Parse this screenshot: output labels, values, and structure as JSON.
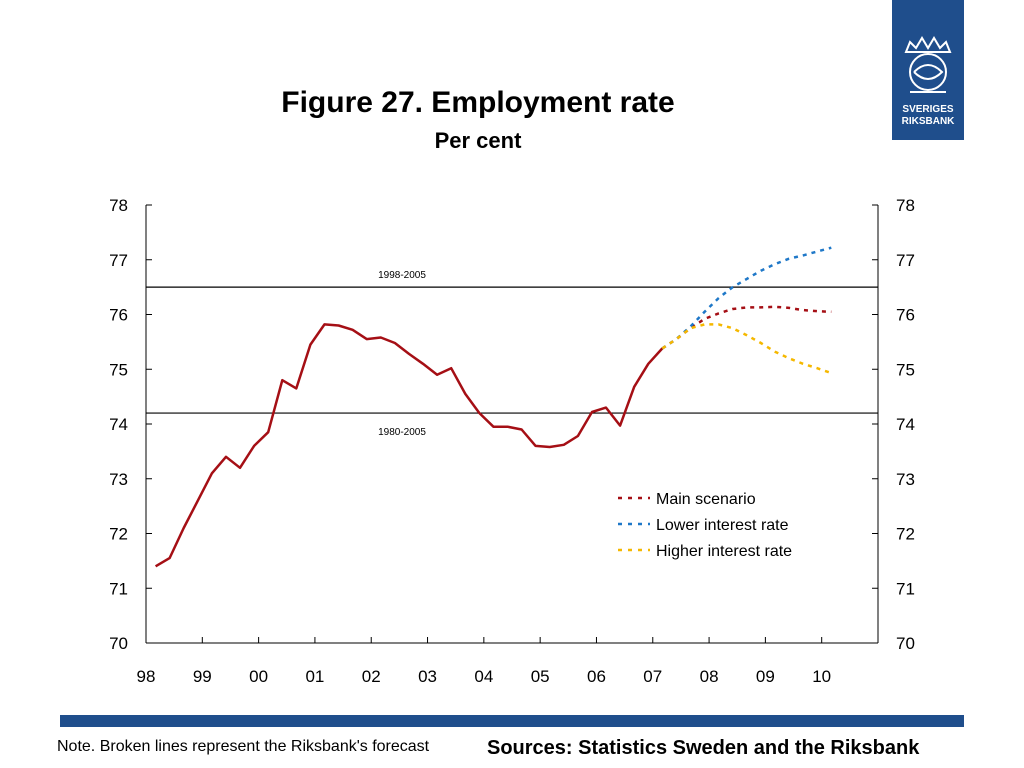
{
  "header": {
    "title": "Figure 27. Employment rate",
    "subtitle": "Per cent"
  },
  "logo": {
    "line1": "SVERIGES",
    "line2": "RIKSBANK",
    "color": "#1f4e8c"
  },
  "footer": {
    "note": "Note. Broken lines represent the Riksbank's forecast",
    "sources": "Sources: Statistics Sweden and the Riksbank",
    "bar_color": "#1f4e8c"
  },
  "chart_data": {
    "type": "line",
    "x_tick_labels": [
      "98",
      "99",
      "00",
      "01",
      "02",
      "03",
      "04",
      "05",
      "06",
      "07",
      "08",
      "09",
      "10"
    ],
    "xlim": [
      1998.0,
      2011.0
    ],
    "ylim": [
      70,
      78
    ],
    "y_ticks": [
      70,
      71,
      72,
      73,
      74,
      75,
      76,
      77,
      78
    ],
    "y_axes": "both",
    "grid": false,
    "legend_position": "bottom-right",
    "reference_lines": [
      {
        "label": "1998-2005",
        "value": 76.5
      },
      {
        "label": "1980-2005",
        "value": 74.2
      }
    ],
    "series": [
      {
        "name": "",
        "style": "solid",
        "color": "#a50f15",
        "points": [
          [
            1998.17,
            71.4
          ],
          [
            1998.42,
            71.55
          ],
          [
            1998.67,
            72.1
          ],
          [
            1998.92,
            72.6
          ],
          [
            1999.17,
            73.1
          ],
          [
            1999.42,
            73.4
          ],
          [
            1999.67,
            73.2
          ],
          [
            1999.92,
            73.6
          ],
          [
            2000.17,
            73.85
          ],
          [
            2000.42,
            74.8
          ],
          [
            2000.67,
            74.65
          ],
          [
            2000.92,
            75.45
          ],
          [
            2001.17,
            75.82
          ],
          [
            2001.42,
            75.8
          ],
          [
            2001.67,
            75.72
          ],
          [
            2001.92,
            75.55
          ],
          [
            2002.17,
            75.58
          ],
          [
            2002.42,
            75.48
          ],
          [
            2002.67,
            75.28
          ],
          [
            2002.92,
            75.1
          ],
          [
            2003.17,
            74.9
          ],
          [
            2003.42,
            75.02
          ],
          [
            2003.67,
            74.55
          ],
          [
            2003.92,
            74.2
          ],
          [
            2004.17,
            73.95
          ],
          [
            2004.42,
            73.95
          ],
          [
            2004.67,
            73.9
          ],
          [
            2004.92,
            73.6
          ],
          [
            2005.17,
            73.58
          ],
          [
            2005.42,
            73.62
          ],
          [
            2005.67,
            73.78
          ],
          [
            2005.92,
            74.22
          ],
          [
            2006.17,
            74.3
          ],
          [
            2006.42,
            73.97
          ],
          [
            2006.67,
            74.68
          ],
          [
            2006.92,
            75.1
          ],
          [
            2007.17,
            75.38
          ]
        ]
      },
      {
        "name": "Main scenario",
        "style": "dashed",
        "color": "#a50f15",
        "points": [
          [
            2007.17,
            75.38
          ],
          [
            2007.42,
            75.55
          ],
          [
            2007.67,
            75.75
          ],
          [
            2007.92,
            75.92
          ],
          [
            2008.17,
            76.02
          ],
          [
            2008.42,
            76.1
          ],
          [
            2008.67,
            76.13
          ],
          [
            2008.92,
            76.13
          ],
          [
            2009.17,
            76.14
          ],
          [
            2009.42,
            76.12
          ],
          [
            2009.67,
            76.08
          ],
          [
            2009.92,
            76.06
          ],
          [
            2010.17,
            76.05
          ]
        ]
      },
      {
        "name": "Lower interest rate",
        "style": "dashed",
        "color": "#1f78c8",
        "points": [
          [
            2007.17,
            75.38
          ],
          [
            2007.42,
            75.55
          ],
          [
            2007.67,
            75.78
          ],
          [
            2007.92,
            76.05
          ],
          [
            2008.17,
            76.3
          ],
          [
            2008.42,
            76.5
          ],
          [
            2008.67,
            76.65
          ],
          [
            2008.92,
            76.8
          ],
          [
            2009.17,
            76.92
          ],
          [
            2009.42,
            77.02
          ],
          [
            2009.67,
            77.08
          ],
          [
            2009.92,
            77.15
          ],
          [
            2010.17,
            77.22
          ]
        ]
      },
      {
        "name": "Higher interest rate",
        "style": "dashed",
        "color": "#f5b800",
        "points": [
          [
            2007.17,
            75.38
          ],
          [
            2007.42,
            75.55
          ],
          [
            2007.67,
            75.75
          ],
          [
            2007.92,
            75.82
          ],
          [
            2008.17,
            75.82
          ],
          [
            2008.42,
            75.75
          ],
          [
            2008.67,
            75.62
          ],
          [
            2008.92,
            75.48
          ],
          [
            2009.17,
            75.32
          ],
          [
            2009.42,
            75.2
          ],
          [
            2009.67,
            75.1
          ],
          [
            2009.92,
            75.02
          ],
          [
            2010.17,
            74.93
          ]
        ]
      }
    ]
  }
}
